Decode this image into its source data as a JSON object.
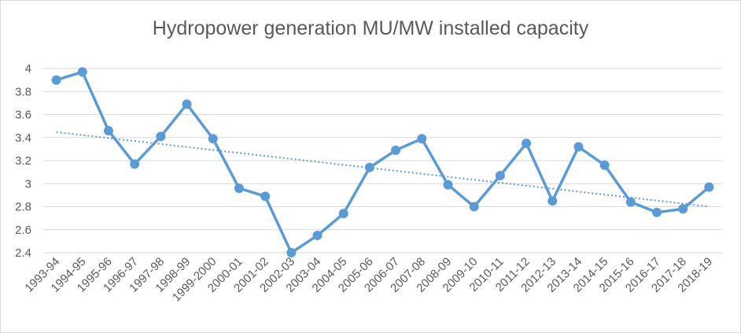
{
  "chart_data": {
    "type": "line",
    "title": "Hydropower generation MU/MW installed capacity",
    "xlabel": "",
    "ylabel": "",
    "categories": [
      "1993-94",
      "1994-95",
      "1995-96",
      "1996-97",
      "1997-98",
      "1998-99",
      "1999-2000",
      "2000-01",
      "2001-02",
      "2002-03",
      "2003-04",
      "2004-05",
      "2005-06",
      "2006-07",
      "2007-08",
      "2008-09",
      "2009-10",
      "2010-11",
      "2011-12",
      "2012-13",
      "2013-14",
      "2014-15",
      "2015-16",
      "2016-17",
      "2017-18",
      "2018-19"
    ],
    "series": [
      {
        "values": [
          3.9,
          3.97,
          3.46,
          3.17,
          3.41,
          3.69,
          3.39,
          2.96,
          2.89,
          2.4,
          2.55,
          2.74,
          3.14,
          3.29,
          3.39,
          2.99,
          2.8,
          3.07,
          3.35,
          2.85,
          3.32,
          3.16,
          2.84,
          2.75,
          2.78,
          2.97
        ]
      }
    ],
    "trendline": {
      "type": "linear",
      "style": "dotted"
    },
    "ylim": [
      2.4,
      4
    ],
    "yticks": [
      "2.4",
      "2.6",
      "2.8",
      "3",
      "3.2",
      "3.4",
      "3.6",
      "3.8",
      "4"
    ],
    "grid": true,
    "legend": "none",
    "colors": {
      "series": "#5b9bd5",
      "trend": "#5b9bd5",
      "grid": "#d9d9d9",
      "text": "#595959"
    }
  }
}
